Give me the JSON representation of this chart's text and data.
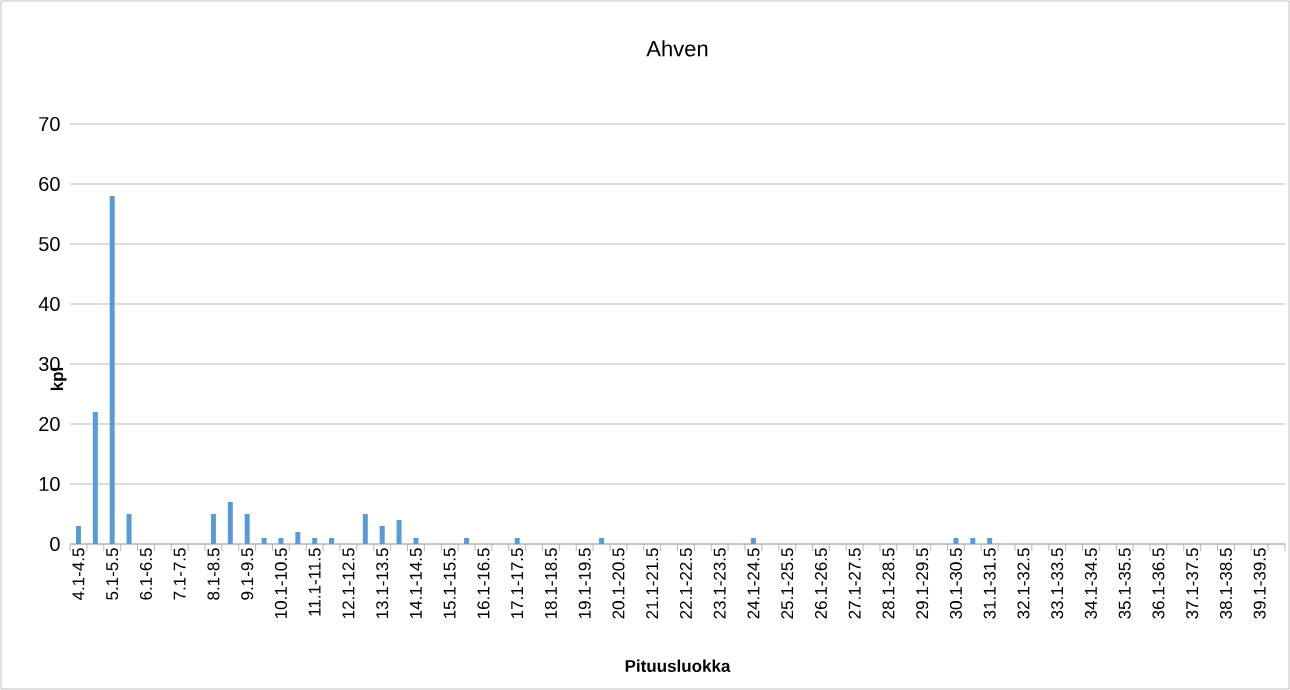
{
  "chart_data": {
    "type": "bar",
    "title": "Ahven",
    "xlabel": "Pituusluokka",
    "ylabel": "kpl",
    "categories": [
      "4.1-4.5",
      null,
      "5.1-5.5",
      null,
      "6.1-6.5",
      null,
      "7.1-7.5",
      null,
      "8.1-8.5",
      null,
      "9.1-9.5",
      null,
      "10.1-10.5",
      null,
      "11.1-11.5",
      null,
      "12.1-12.5",
      null,
      "13.1-13.5",
      null,
      "14.1-14.5",
      null,
      "15.1-15.5",
      null,
      "16.1-16.5",
      null,
      "17.1-17.5",
      null,
      "18.1-18.5",
      null,
      "19.1-19.5",
      null,
      "20.1-20.5",
      null,
      "21.1-21.5",
      null,
      "22.1-22.5",
      null,
      "23.1-23.5",
      null,
      "24.1-24.5",
      null,
      "25.1-25.5",
      null,
      "26.1-26.5",
      null,
      "27.1-27.5",
      null,
      "28.1-28.5",
      null,
      "29.1-29.5",
      null,
      "30.1-30.5",
      null,
      "31.1-31.5",
      null,
      "32.1-32.5",
      null,
      "33.1-33.5",
      null,
      "34.1-34.5",
      null,
      "35.1-35.5",
      null,
      "36.1-36.5",
      null,
      "37.1-37.5",
      null,
      "38.1-38.5",
      null,
      "39.1-39.5",
      null
    ],
    "values": [
      3,
      22,
      58,
      5,
      0,
      0,
      0,
      0,
      5,
      7,
      5,
      1,
      1,
      2,
      1,
      1,
      0,
      5,
      3,
      4,
      1,
      0,
      0,
      1,
      0,
      0,
      1,
      0,
      0,
      0,
      0,
      1,
      0,
      0,
      0,
      0,
      0,
      0,
      0,
      0,
      1,
      0,
      0,
      0,
      0,
      0,
      0,
      0,
      0,
      0,
      0,
      0,
      1,
      1,
      1,
      0,
      0,
      0,
      0,
      0,
      0,
      0,
      0,
      0,
      0,
      0,
      0,
      0,
      0,
      0,
      0,
      0
    ],
    "color": "#5b9bd5",
    "ylim": [
      0,
      70
    ],
    "yticks": [
      0,
      10,
      20,
      30,
      40,
      50,
      60,
      70
    ],
    "grid": "y"
  }
}
